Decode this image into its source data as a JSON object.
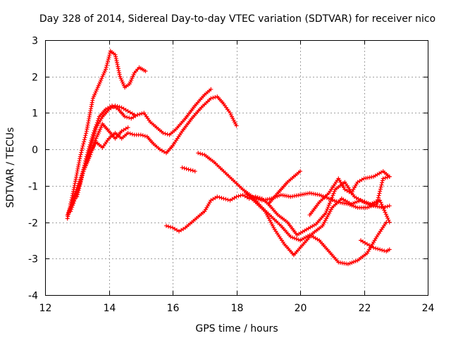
{
  "chart_data": {
    "type": "scatter",
    "title": "Day 328 of 2014, Sidereal Day-to-day VTEC variation (SDTVAR) for receiver nico",
    "xlabel": "GPS time / hours",
    "ylabel": "SDTVAR / TECUs",
    "xlim": [
      12,
      24
    ],
    "ylim": [
      -4,
      3
    ],
    "xticks": [
      12,
      14,
      16,
      18,
      20,
      22,
      24
    ],
    "yticks": [
      -4,
      -3,
      -2,
      -1,
      0,
      1,
      2,
      3
    ],
    "grid": true,
    "marker": "plus",
    "color": "#ff0000",
    "series": [
      {
        "name": "track-1",
        "x": [
          12.7,
          12.9,
          13.1,
          13.3,
          13.5,
          13.7,
          13.9,
          14.05,
          14.2,
          14.35,
          14.5,
          14.65,
          14.8,
          14.95,
          15.05,
          15.15
        ],
        "y": [
          -1.9,
          -1.1,
          -0.2,
          0.5,
          1.4,
          1.8,
          2.2,
          2.7,
          2.6,
          2.0,
          1.7,
          1.8,
          2.1,
          2.25,
          2.2,
          2.15
        ]
      },
      {
        "name": "track-2",
        "x": [
          12.7,
          12.9,
          13.1,
          13.3,
          13.5,
          13.7,
          13.9,
          14.1,
          14.3,
          14.5,
          14.7,
          14.9,
          15.1,
          15.3,
          15.5,
          15.7,
          15.9,
          16.1,
          16.4,
          16.7,
          17.0,
          17.2
        ],
        "y": [
          -1.8,
          -1.4,
          -0.9,
          -0.2,
          0.4,
          0.9,
          1.1,
          1.2,
          1.1,
          0.9,
          0.85,
          0.95,
          1.0,
          0.75,
          0.6,
          0.45,
          0.4,
          0.55,
          0.85,
          1.2,
          1.5,
          1.65
        ]
      },
      {
        "name": "track-3",
        "x": [
          12.8,
          13.0,
          13.2,
          13.4,
          13.6,
          13.8,
          14.0,
          14.2,
          14.4,
          14.6,
          14.8,
          15.0,
          15.2,
          15.4,
          15.6,
          15.8,
          16.0,
          16.3,
          16.6,
          16.9,
          17.2,
          17.4,
          17.6,
          17.8,
          18.0
        ],
        "y": [
          -1.7,
          -1.2,
          -0.6,
          -0.1,
          0.2,
          0.05,
          0.3,
          0.45,
          0.3,
          0.45,
          0.4,
          0.4,
          0.35,
          0.15,
          0.0,
          -0.1,
          0.1,
          0.5,
          0.85,
          1.15,
          1.4,
          1.45,
          1.25,
          1.0,
          0.65
        ]
      },
      {
        "name": "track-4",
        "x": [
          12.8,
          13.0,
          13.2,
          13.4,
          13.6,
          13.8,
          14.0,
          14.2,
          14.4,
          14.6,
          14.8
        ],
        "y": [
          -1.5,
          -1.1,
          -0.6,
          0.0,
          0.6,
          0.9,
          1.1,
          1.2,
          1.15,
          1.05,
          0.95
        ]
      },
      {
        "name": "track-5",
        "x": [
          13.0,
          13.2,
          13.4,
          13.6,
          13.8,
          14.0,
          14.2,
          14.4,
          14.6
        ],
        "y": [
          -1.3,
          -0.6,
          -0.2,
          0.3,
          0.7,
          0.5,
          0.3,
          0.5,
          0.6
        ]
      },
      {
        "name": "track-6",
        "x": [
          16.3,
          16.5,
          16.7
        ],
        "y": [
          -0.5,
          -0.55,
          -0.6
        ]
      },
      {
        "name": "track-7",
        "x": [
          15.8,
          16.0,
          16.2,
          16.4,
          16.6,
          16.8,
          17.0,
          17.2,
          17.4,
          17.6,
          17.8,
          18.0,
          18.2,
          18.4,
          18.6,
          18.8,
          19.0,
          19.2,
          19.4,
          19.6,
          19.8,
          20.0
        ],
        "y": [
          -2.1,
          -2.15,
          -2.25,
          -2.15,
          -2.0,
          -1.85,
          -1.7,
          -1.4,
          -1.3,
          -1.35,
          -1.4,
          -1.3,
          -1.25,
          -1.35,
          -1.3,
          -1.35,
          -1.5,
          -1.3,
          -1.1,
          -0.9,
          -0.75,
          -0.6
        ]
      },
      {
        "name": "track-8",
        "x": [
          16.8,
          17.0,
          17.3,
          17.6,
          17.9,
          18.2,
          18.5,
          18.8,
          19.1,
          19.4,
          19.7,
          20.0,
          20.3,
          20.6,
          20.9,
          21.2,
          21.5,
          21.8,
          22.1,
          22.4,
          22.6,
          22.8
        ],
        "y": [
          -0.1,
          -0.15,
          -0.35,
          -0.6,
          -0.85,
          -1.1,
          -1.3,
          -1.4,
          -1.35,
          -1.25,
          -1.3,
          -1.25,
          -1.2,
          -1.25,
          -1.35,
          -1.45,
          -1.5,
          -1.6,
          -1.6,
          -1.5,
          -0.8,
          -0.75
        ]
      },
      {
        "name": "track-9",
        "x": [
          18.3,
          18.6,
          18.9,
          19.2,
          19.5,
          19.8,
          20.1,
          20.4,
          20.7,
          21.0,
          21.3,
          21.6,
          21.9,
          22.2,
          22.5,
          22.8
        ],
        "y": [
          -1.2,
          -1.45,
          -1.7,
          -2.2,
          -2.6,
          -2.9,
          -2.6,
          -2.3,
          -2.1,
          -1.6,
          -1.35,
          -1.5,
          -1.4,
          -1.5,
          -1.4,
          -2.0
        ]
      },
      {
        "name": "track-10",
        "x": [
          18.5,
          18.8,
          19.1,
          19.4,
          19.7,
          20.0,
          20.3,
          20.6,
          20.9,
          21.2,
          21.5,
          21.8,
          22.1,
          22.4,
          22.7
        ],
        "y": [
          -1.3,
          -1.6,
          -1.85,
          -2.1,
          -2.4,
          -2.5,
          -2.35,
          -2.5,
          -2.8,
          -3.1,
          -3.15,
          -3.05,
          -2.85,
          -2.4,
          -2.0
        ]
      },
      {
        "name": "track-11",
        "x": [
          19.0,
          19.3,
          19.6,
          19.9,
          20.2,
          20.5,
          20.8,
          21.1,
          21.4,
          21.7,
          22.0,
          22.3,
          22.6,
          22.8
        ],
        "y": [
          -1.5,
          -1.8,
          -2.0,
          -2.35,
          -2.2,
          -2.05,
          -1.75,
          -1.1,
          -0.9,
          -1.3,
          -1.45,
          -1.55,
          -1.6,
          -1.55
        ]
      },
      {
        "name": "track-12",
        "x": [
          20.3,
          20.6,
          20.9,
          21.2,
          21.4,
          21.6,
          21.8,
          22.0,
          22.3,
          22.6,
          22.8
        ],
        "y": [
          -1.8,
          -1.45,
          -1.2,
          -0.8,
          -1.1,
          -1.2,
          -0.9,
          -0.8,
          -0.75,
          -0.6,
          -0.75
        ]
      },
      {
        "name": "track-13",
        "x": [
          21.9,
          22.1,
          22.3,
          22.5,
          22.7,
          22.8
        ],
        "y": [
          -2.5,
          -2.6,
          -2.7,
          -2.75,
          -2.8,
          -2.75
        ]
      }
    ]
  }
}
